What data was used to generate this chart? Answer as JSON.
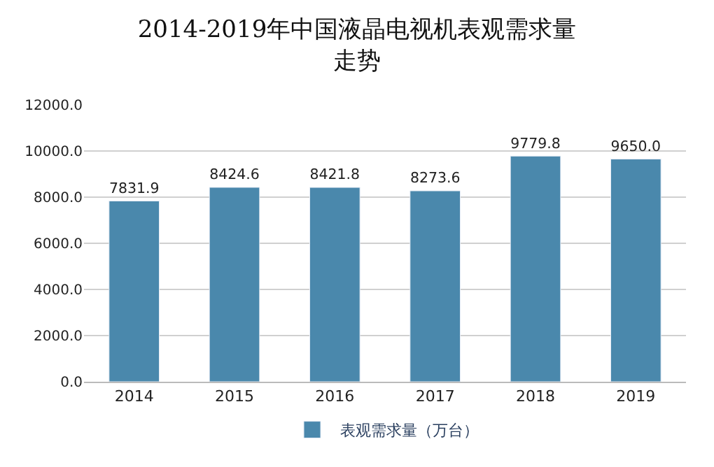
{
  "chart_data": {
    "type": "bar",
    "title": "2014-2019年中国液晶电视机表观需求量走势",
    "categories": [
      "2014",
      "2015",
      "2016",
      "2017",
      "2018",
      "2019"
    ],
    "series": [
      {
        "name": "表观需求量（万台）",
        "color": "#4a88ac",
        "values": [
          7831.9,
          8424.6,
          8421.8,
          8273.6,
          9779.8,
          9650.0
        ],
        "value_labels": [
          "7831.9",
          "8424.6",
          "8421.8",
          "8273.6",
          "9779.8",
          "9650.0"
        ]
      }
    ],
    "ylim": [
      0,
      12000
    ],
    "yticks": [
      {
        "value": 0,
        "label": "0.0"
      },
      {
        "value": 2000,
        "label": "2000.0"
      },
      {
        "value": 4000,
        "label": "4000.0"
      },
      {
        "value": 6000,
        "label": "6000.0"
      },
      {
        "value": 8000,
        "label": "8000.0"
      },
      {
        "value": 10000,
        "label": "10000.0"
      },
      {
        "value": 12000,
        "label": "12000.0"
      }
    ],
    "grid": "y",
    "legend": "bottom"
  }
}
